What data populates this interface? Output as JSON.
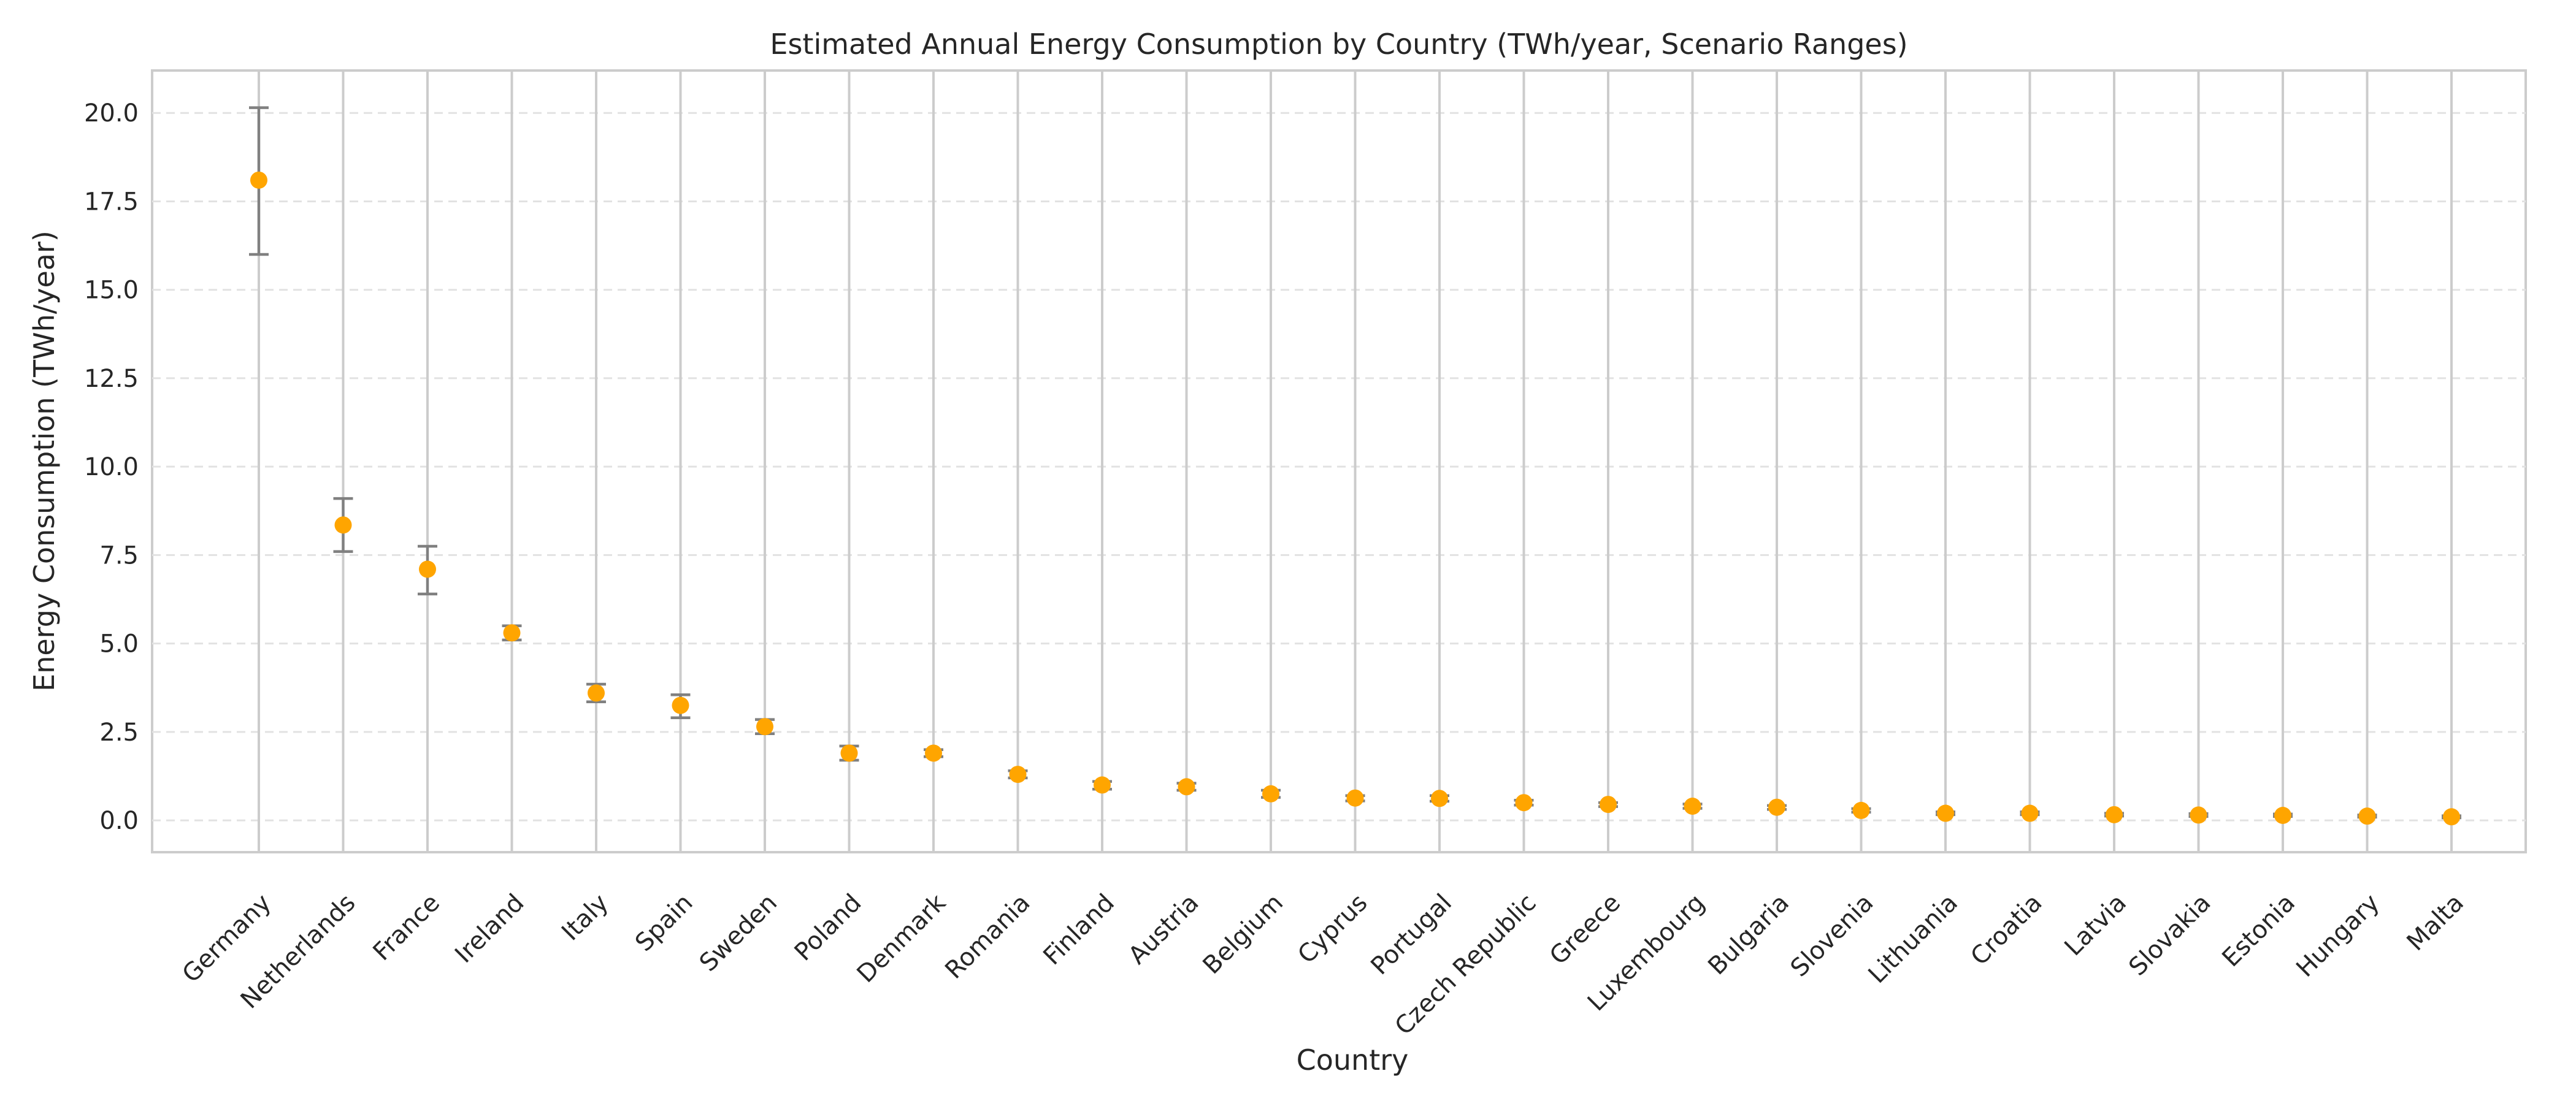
{
  "chart_data": {
    "type": "scatter",
    "title": "Estimated Annual Energy Consumption by Country (TWh/year, Scenario Ranges)",
    "xlabel": "Country",
    "ylabel": "Energy Consumption (TWh/year)",
    "ylim": [
      -0.9,
      21.2
    ],
    "yticks": [
      0.0,
      2.5,
      5.0,
      7.5,
      10.0,
      12.5,
      15.0,
      17.5,
      20.0
    ],
    "ytick_labels": [
      "0.0",
      "2.5",
      "5.0",
      "7.5",
      "10.0",
      "12.5",
      "15.0",
      "17.5",
      "20.0"
    ],
    "grid": true,
    "marker_color": "#FFA500",
    "errorbar_color": "#808080",
    "categories": [
      "Germany",
      "Netherlands",
      "France",
      "Ireland",
      "Italy",
      "Spain",
      "Sweden",
      "Poland",
      "Denmark",
      "Romania",
      "Finland",
      "Austria",
      "Belgium",
      "Cyprus",
      "Portugal",
      "Czech Republic",
      "Greece",
      "Luxembourg",
      "Bulgaria",
      "Slovenia",
      "Lithuania",
      "Croatia",
      "Latvia",
      "Slovakia",
      "Estonia",
      "Hungary",
      "Malta"
    ],
    "values": [
      18.1,
      8.35,
      7.1,
      5.3,
      3.6,
      3.25,
      2.65,
      1.9,
      1.9,
      1.3,
      1.0,
      0.95,
      0.75,
      0.63,
      0.62,
      0.5,
      0.45,
      0.4,
      0.37,
      0.28,
      0.2,
      0.2,
      0.16,
      0.15,
      0.14,
      0.12,
      0.1
    ],
    "lower": [
      16.0,
      7.6,
      6.4,
      5.1,
      3.35,
      2.9,
      2.45,
      1.7,
      1.8,
      1.2,
      0.88,
      0.85,
      0.65,
      0.55,
      0.54,
      0.43,
      0.39,
      0.34,
      0.31,
      0.23,
      0.16,
      0.16,
      0.12,
      0.11,
      0.11,
      0.09,
      0.07
    ],
    "upper": [
      20.15,
      9.1,
      7.75,
      5.5,
      3.85,
      3.55,
      2.85,
      2.1,
      2.0,
      1.4,
      1.1,
      1.05,
      0.85,
      0.7,
      0.7,
      0.57,
      0.5,
      0.46,
      0.42,
      0.33,
      0.24,
      0.24,
      0.2,
      0.19,
      0.18,
      0.15,
      0.13
    ]
  }
}
